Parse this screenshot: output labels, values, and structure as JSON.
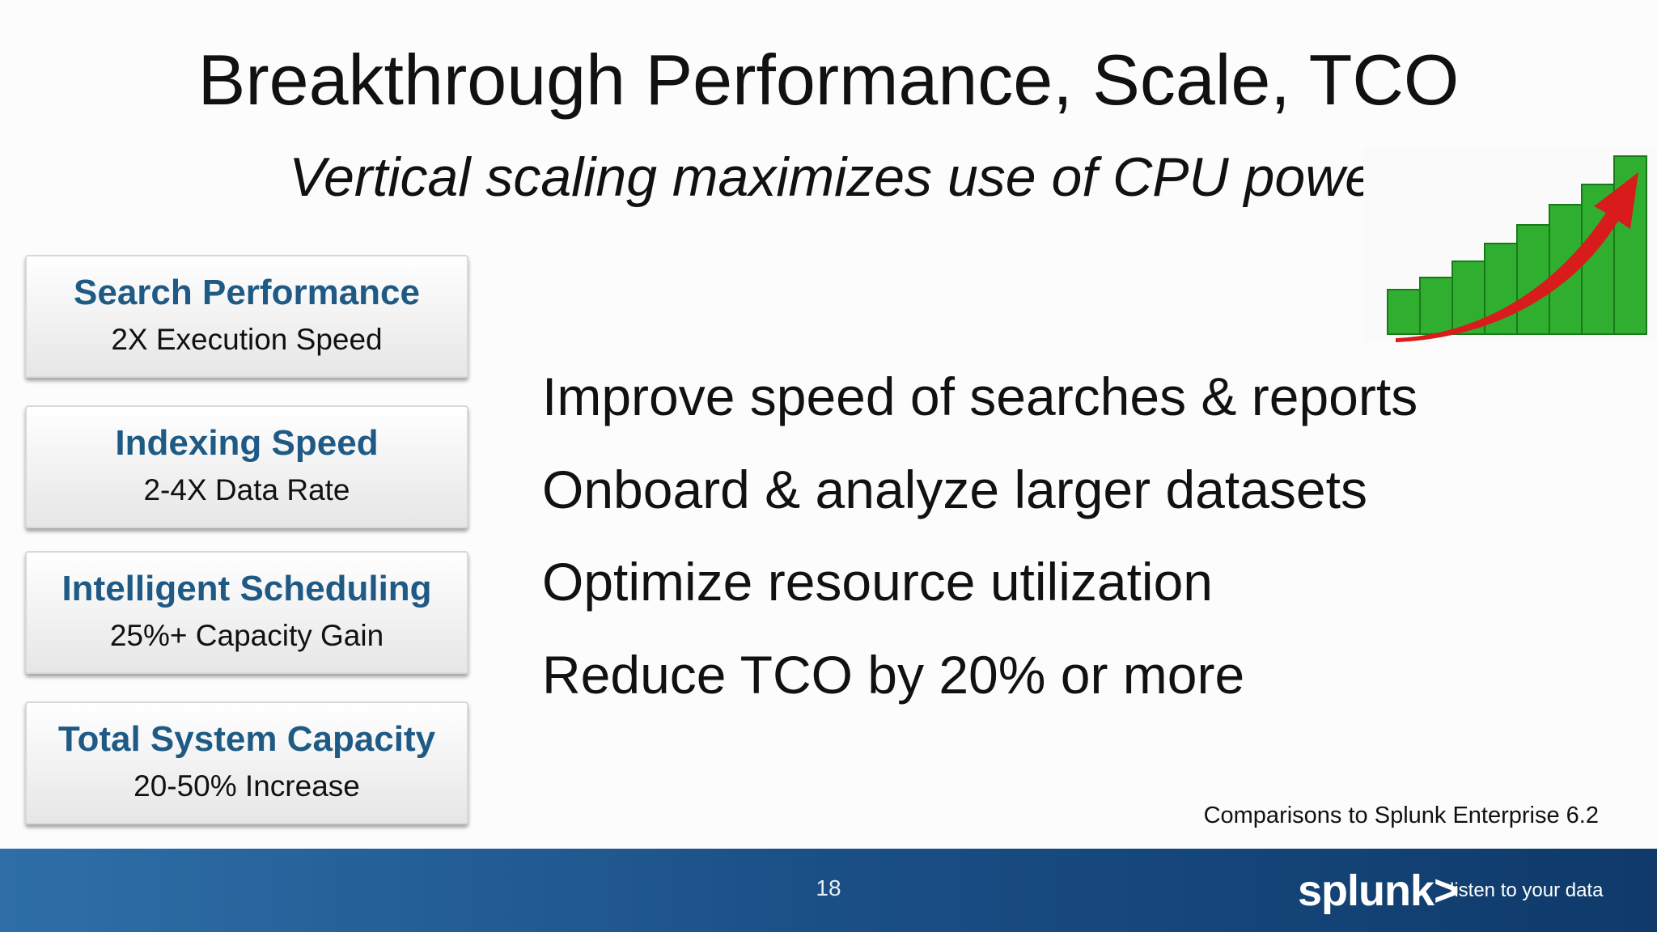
{
  "title": "Breakthrough Performance, Scale, TCO",
  "subtitle": "Vertical scaling maximizes use of CPU power",
  "boxes": [
    {
      "heading": "Search Performance",
      "detail": "2X Execution Speed"
    },
    {
      "heading": "Indexing Speed",
      "detail": "2-4X Data Rate"
    },
    {
      "heading": "Intelligent Scheduling",
      "detail": "25%+ Capacity Gain"
    },
    {
      "heading": "Total System Capacity",
      "detail": "20-50% Increase"
    }
  ],
  "bullets": [
    "Improve speed of searches & reports",
    "Onboard & analyze larger datasets",
    "Optimize resource utilization",
    "Reduce TCO by 20% or more"
  ],
  "footnote": "Comparisons to Splunk Enterprise 6.2",
  "footer": {
    "page_number": "18",
    "brand": "splunk>",
    "tagline": "listen to your data"
  }
}
